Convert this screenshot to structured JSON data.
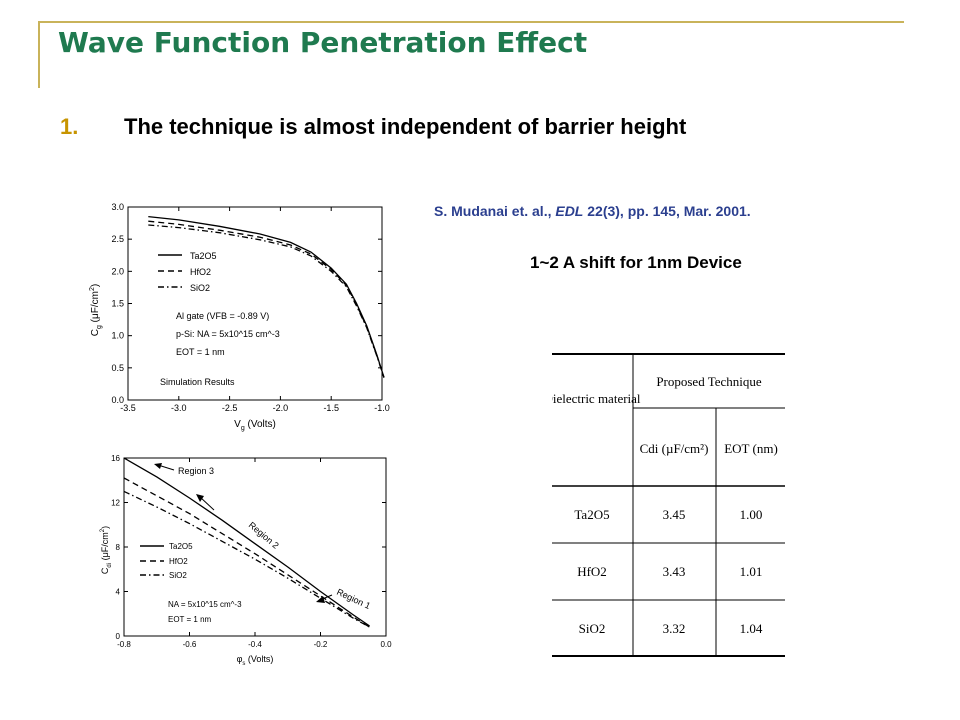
{
  "slide": {
    "title": "Wave Function Penetration Effect",
    "bullet_number": "1.",
    "bullet_text": "The technique is almost independent of barrier height",
    "citation_prefix": "S. Mudanai et. al., ",
    "citation_journal": "EDL",
    "citation_suffix": " 22(3), pp. 145, Mar. 2001.",
    "shift_note": "1~2 A shift for 1nm Device"
  },
  "colors": {
    "title": "#1f7a4f",
    "bullet_number": "#c79400",
    "citation": "#2b3f8f",
    "rule": "#c9b35a"
  },
  "figure_cv": {
    "y_tick_labels": [
      "0.0",
      "0.5",
      "1.0",
      "1.5",
      "2.0",
      "2.5",
      "3.0"
    ],
    "x_tick_labels": [
      "-3.5",
      "-3.0",
      "-2.5",
      "-2.0",
      "-1.5",
      "-1.0"
    ],
    "legend": [
      "Ta2O5",
      "HfO2",
      "SiO2"
    ],
    "params": [
      "Al gate (VFB = -0.89 V)",
      "p-Si: NA = 5x10^15 cm^-3",
      "EOT = 1 nm"
    ],
    "note": "Simulation Results"
  },
  "figure_phi": {
    "y_tick_labels": [
      "0",
      "4",
      "8",
      "12",
      "16"
    ],
    "x_tick_labels": [
      "-0.8",
      "-0.6",
      "-0.4",
      "-0.2",
      "0.0"
    ],
    "legend": [
      "Ta2O5",
      "HfO2",
      "SiO2"
    ],
    "params": [
      "NA = 5x10^15 cm^-3",
      "EOT = 1 nm"
    ],
    "regions": [
      "Region 3",
      "Region 2",
      "Region 1"
    ]
  },
  "chart_data": [
    {
      "type": "line",
      "xlim": [
        -3.5,
        -1.0
      ],
      "ylim": [
        0.0,
        3.0
      ],
      "series": [
        {
          "name": "Ta2O5",
          "x": [
            -3.3,
            -3.0,
            -2.6,
            -2.2,
            -1.9,
            -1.7,
            -1.5,
            -1.35,
            -1.25,
            -1.15,
            -1.05,
            -0.98
          ],
          "y": [
            2.85,
            2.8,
            2.7,
            2.58,
            2.45,
            2.3,
            2.05,
            1.8,
            1.5,
            1.15,
            0.7,
            0.35
          ]
        },
        {
          "name": "HfO2",
          "x": [
            -3.3,
            -3.0,
            -2.6,
            -2.2,
            -1.9,
            -1.7,
            -1.5,
            -1.35,
            -1.25,
            -1.15,
            -1.05,
            -0.98
          ],
          "y": [
            2.78,
            2.73,
            2.64,
            2.53,
            2.41,
            2.27,
            2.03,
            1.78,
            1.48,
            1.13,
            0.69,
            0.35
          ]
        },
        {
          "name": "SiO2",
          "x": [
            -3.3,
            -3.0,
            -2.6,
            -2.2,
            -1.9,
            -1.7,
            -1.5,
            -1.35,
            -1.25,
            -1.15,
            -1.05,
            -0.98
          ],
          "y": [
            2.72,
            2.68,
            2.6,
            2.49,
            2.38,
            2.24,
            2.0,
            1.76,
            1.46,
            1.12,
            0.68,
            0.35
          ]
        }
      ]
    },
    {
      "type": "line",
      "xlim": [
        -0.8,
        0.0
      ],
      "ylim": [
        0,
        16
      ],
      "series": [
        {
          "name": "Ta2O5",
          "x": [
            -0.8,
            -0.7,
            -0.6,
            -0.5,
            -0.4,
            -0.3,
            -0.2,
            -0.1,
            -0.05
          ],
          "y": [
            16,
            14.3,
            12.4,
            10.4,
            8.3,
            6.2,
            4.0,
            1.9,
            0.9
          ]
        },
        {
          "name": "HfO2",
          "x": [
            -0.8,
            -0.7,
            -0.6,
            -0.5,
            -0.4,
            -0.3,
            -0.2,
            -0.1,
            -0.05
          ],
          "y": [
            14.2,
            12.6,
            11.0,
            9.2,
            7.4,
            5.5,
            3.6,
            1.7,
            0.8
          ]
        },
        {
          "name": "SiO2",
          "x": [
            -0.8,
            -0.7,
            -0.6,
            -0.5,
            -0.4,
            -0.3,
            -0.2,
            -0.1,
            -0.05
          ],
          "y": [
            13.0,
            11.6,
            10.1,
            8.5,
            6.9,
            5.2,
            3.4,
            1.6,
            0.8
          ]
        }
      ]
    },
    {
      "type": "table",
      "header_top": [
        "Dielectric material",
        "Proposed Technique"
      ],
      "header_sub": [
        "Cdi (µF/cm²)",
        "EOT (nm)"
      ],
      "rows": [
        {
          "material": "Ta2O5",
          "cdi": "3.45",
          "eot": "1.00"
        },
        {
          "material": "HfO2",
          "cdi": "3.43",
          "eot": "1.01"
        },
        {
          "material": "SiO2",
          "cdi": "3.32",
          "eot": "1.04"
        }
      ]
    }
  ]
}
